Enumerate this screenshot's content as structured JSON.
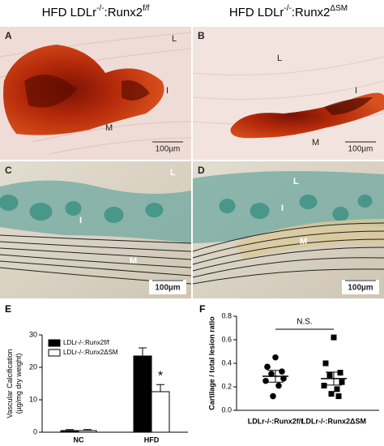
{
  "header": [
    {
      "parts": [
        "HFD LDLr",
        "-/-",
        ":Runx2",
        "f/f"
      ]
    },
    {
      "parts": [
        "HFD LDLr",
        "-/-",
        ":Runx2",
        "ΔSM"
      ]
    }
  ],
  "panels": [
    {
      "letter": "A",
      "labels": [
        "L",
        "I",
        "M"
      ],
      "scale": "100µm"
    },
    {
      "letter": "B",
      "labels": [
        "L",
        "I",
        "M"
      ],
      "scale": "100µm"
    },
    {
      "letter": "C",
      "labels": [
        "L",
        "I",
        "M"
      ],
      "scale": "100µm"
    },
    {
      "letter": "D",
      "labels": [
        "L",
        "I",
        "M"
      ],
      "scale": "100µm"
    }
  ],
  "chart_data": [
    {
      "type": "bar",
      "letter": "E",
      "ylabel": [
        "Vascular Calcification",
        "(µg/mg dry weight)"
      ],
      "categories": [
        "NC",
        "HFD"
      ],
      "series": [
        {
          "name": "LDLr-/-:Runx2f/f",
          "color": "#000000",
          "values": [
            0.5,
            23.5
          ],
          "errors": [
            0.3,
            2.5
          ]
        },
        {
          "name": "LDLr-/-:Runx2ΔSM",
          "color": "#ffffff",
          "values": [
            0.5,
            12.5
          ],
          "errors": [
            0.3,
            2.2
          ]
        }
      ],
      "annotation": "*",
      "ylim": [
        0,
        30
      ],
      "yticks": [
        0,
        10,
        20,
        30
      ]
    },
    {
      "type": "scatter",
      "letter": "F",
      "ylabel": "Cartilage / total lesion ratio",
      "categories": [
        "LDLr-/-:Runx2f/f",
        "LDLr-/-:Runx2ΔSM"
      ],
      "series": [
        {
          "marker": "circle",
          "color": "#000000",
          "values": [
            0.45,
            0.37,
            0.33,
            0.31,
            0.27,
            0.25,
            0.21,
            0.12
          ],
          "mean": 0.29,
          "error": 0.05
        },
        {
          "marker": "square",
          "color": "#000000",
          "values": [
            0.62,
            0.4,
            0.32,
            0.3,
            0.24,
            0.21,
            0.18,
            0.14,
            0.12
          ],
          "mean": 0.27,
          "error": 0.055
        }
      ],
      "annotation": "N.S.",
      "ylim": [
        0,
        0.8
      ],
      "yticks": [
        {
          "value": 0,
          "label": "0.0"
        },
        0.2,
        0.4,
        0.6,
        0.8
      ]
    }
  ]
}
